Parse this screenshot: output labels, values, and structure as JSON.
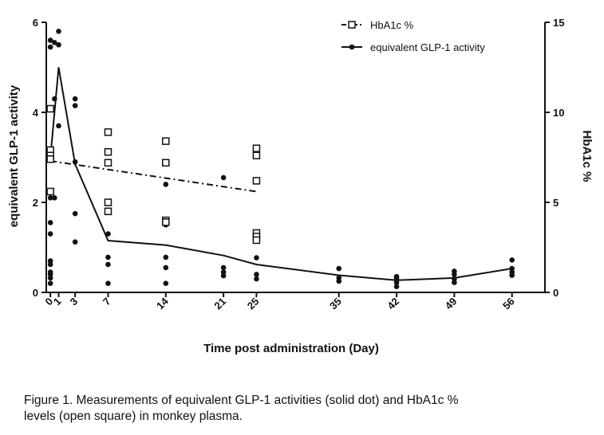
{
  "chart_data": {
    "type": "scatter",
    "xlabel": "Time post administration (Day)",
    "ylabel_left": "equivalent GLP-1 activity",
    "ylabel_right": "HbA1c %",
    "x_ticks": [
      0,
      1,
      3,
      7,
      14,
      21,
      25,
      35,
      42,
      49,
      56
    ],
    "x_tick_labels": [
      "0",
      "1",
      "3",
      "7",
      "14",
      "21",
      "25",
      "35",
      "42",
      "49",
      "56"
    ],
    "xlim": [
      -0.5,
      60
    ],
    "ylim_left": [
      0,
      6
    ],
    "ylim_right": [
      0,
      15
    ],
    "y_left_ticks": [
      "0",
      "2",
      "4",
      "6"
    ],
    "y_right_ticks": [
      "0",
      "5",
      "10",
      "15"
    ],
    "legend": [
      {
        "label": "HbA1c %",
        "marker": "open-square",
        "line": "dash-dot"
      },
      {
        "label": "equivalent GLP-1 activity",
        "marker": "filled-circle",
        "line": "solid"
      }
    ],
    "series": [
      {
        "name": "equivalent GLP-1 activity",
        "axis": "left",
        "mean_line": {
          "x": [
            0,
            1,
            3,
            7,
            14,
            21,
            25,
            35,
            42,
            49,
            56
          ],
          "y": [
            3.0,
            5.0,
            2.85,
            1.15,
            1.05,
            0.82,
            0.62,
            0.38,
            0.27,
            0.32,
            0.53
          ]
        },
        "points": [
          [
            0,
            0.2
          ],
          [
            0,
            0.32
          ],
          [
            0,
            0.4
          ],
          [
            0,
            0.45
          ],
          [
            0,
            0.62
          ],
          [
            0,
            0.7
          ],
          [
            0,
            1.3
          ],
          [
            0,
            1.55
          ],
          [
            0,
            2.1
          ],
          [
            0,
            5.45
          ],
          [
            0,
            5.6
          ],
          [
            0.5,
            5.55
          ],
          [
            0.5,
            4.3
          ],
          [
            0.5,
            2.1
          ],
          [
            1,
            5.8
          ],
          [
            1,
            5.5
          ],
          [
            1,
            3.7
          ],
          [
            3,
            4.3
          ],
          [
            3,
            4.15
          ],
          [
            3,
            2.9
          ],
          [
            3,
            1.75
          ],
          [
            3,
            1.12
          ],
          [
            7,
            1.3
          ],
          [
            7,
            0.78
          ],
          [
            7,
            0.62
          ],
          [
            7,
            0.2
          ],
          [
            14,
            2.4
          ],
          [
            14,
            1.55
          ],
          [
            14,
            1.5
          ],
          [
            14,
            0.78
          ],
          [
            14,
            0.55
          ],
          [
            14,
            0.2
          ],
          [
            21,
            2.55
          ],
          [
            21,
            0.55
          ],
          [
            21,
            0.45
          ],
          [
            21,
            0.37
          ],
          [
            25,
            1.3
          ],
          [
            25,
            0.77
          ],
          [
            25,
            0.4
          ],
          [
            25,
            0.3
          ],
          [
            35,
            0.53
          ],
          [
            35,
            0.32
          ],
          [
            35,
            0.25
          ],
          [
            42,
            0.35
          ],
          [
            42,
            0.3
          ],
          [
            42,
            0.22
          ],
          [
            42,
            0.13
          ],
          [
            49,
            0.47
          ],
          [
            49,
            0.4
          ],
          [
            49,
            0.3
          ],
          [
            49,
            0.22
          ],
          [
            56,
            0.72
          ],
          [
            56,
            0.53
          ],
          [
            56,
            0.45
          ],
          [
            56,
            0.38
          ]
        ]
      },
      {
        "name": "HbA1c %",
        "axis": "right",
        "mean_line": {
          "x": [
            0,
            25
          ],
          "y": [
            7.3,
            5.6
          ]
        },
        "points": [
          [
            0,
            10.2
          ],
          [
            0,
            7.9
          ],
          [
            0,
            7.6
          ],
          [
            0,
            7.4
          ],
          [
            0,
            5.6
          ],
          [
            7,
            8.9
          ],
          [
            7,
            7.8
          ],
          [
            7,
            7.2
          ],
          [
            7,
            5.0
          ],
          [
            7,
            4.5
          ],
          [
            14,
            8.4
          ],
          [
            14,
            7.2
          ],
          [
            14,
            4.0
          ],
          [
            14,
            3.9
          ],
          [
            25,
            8.0
          ],
          [
            25,
            7.6
          ],
          [
            25,
            6.2
          ],
          [
            25,
            3.3
          ],
          [
            25,
            3.1
          ],
          [
            25,
            2.9
          ]
        ]
      }
    ]
  },
  "caption": {
    "line1": "Figure 1. Measurements of equivalent GLP-1 activities (solid dot) and HbA1c %",
    "line2": "levels (open square) in monkey plasma."
  }
}
